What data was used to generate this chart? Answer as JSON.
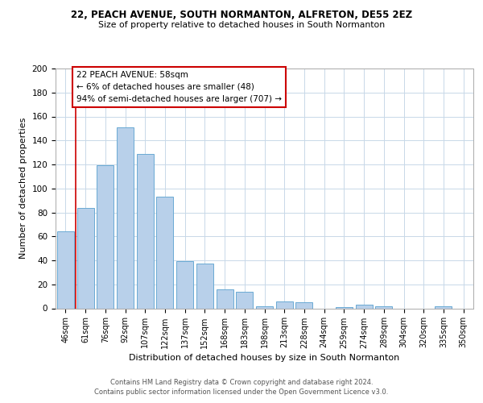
{
  "title1": "22, PEACH AVENUE, SOUTH NORMANTON, ALFRETON, DE55 2EZ",
  "title2": "Size of property relative to detached houses in South Normanton",
  "xlabel": "Distribution of detached houses by size in South Normanton",
  "ylabel": "Number of detached properties",
  "footer1": "Contains HM Land Registry data © Crown copyright and database right 2024.",
  "footer2": "Contains public sector information licensed under the Open Government Licence v3.0.",
  "bar_labels": [
    "46sqm",
    "61sqm",
    "76sqm",
    "92sqm",
    "107sqm",
    "122sqm",
    "137sqm",
    "152sqm",
    "168sqm",
    "183sqm",
    "198sqm",
    "213sqm",
    "228sqm",
    "244sqm",
    "259sqm",
    "274sqm",
    "289sqm",
    "304sqm",
    "320sqm",
    "335sqm",
    "350sqm"
  ],
  "bar_values": [
    64,
    84,
    119,
    151,
    129,
    93,
    39,
    37,
    16,
    14,
    2,
    6,
    5,
    0,
    1,
    3,
    2,
    0,
    0,
    2,
    0
  ],
  "bar_color": "#b8d0ea",
  "bar_edge_color": "#6aaad4",
  "annotation_box_text": "22 PEACH AVENUE: 58sqm\n← 6% of detached houses are smaller (48)\n94% of semi-detached houses are larger (707) →",
  "annotation_box_color": "#ffffff",
  "annotation_box_edge_color": "#cc0000",
  "property_line_color": "#cc0000",
  "background_color": "#ffffff",
  "grid_color": "#c8d8e8",
  "ylim": [
    0,
    200
  ],
  "yticks": [
    0,
    20,
    40,
    60,
    80,
    100,
    120,
    140,
    160,
    180,
    200
  ]
}
